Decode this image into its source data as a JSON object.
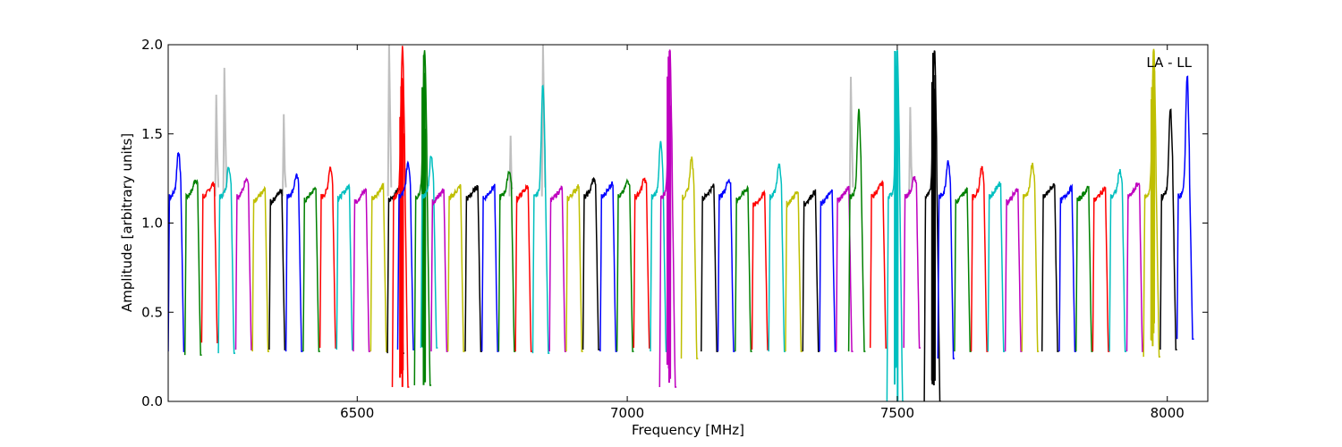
{
  "chart_data": {
    "type": "line",
    "title": "",
    "xlabel": "Frequency [MHz]",
    "ylabel": "Amplitude [arbitrary units]",
    "annotation": "LA - LL",
    "xlim": [
      6150,
      8075
    ],
    "ylim": [
      0.0,
      2.0
    ],
    "xticks": [
      6500,
      7000,
      7500,
      8000
    ],
    "xtick_labels": [
      "6500",
      "7000",
      "7500",
      "8000"
    ],
    "yticks": [
      0.0,
      0.5,
      1.0,
      1.5,
      2.0
    ],
    "ytick_labels": [
      "0.0",
      "0.5",
      "1.0",
      "1.5",
      "2.0"
    ],
    "grid": false,
    "background_series": {
      "name": "",
      "color": "#bfbfbf",
      "description": "grey trace underlying the colored channel traces, following the same comb shape with spikes",
      "spikes": [
        {
          "x": 6240,
          "y": 1.72
        },
        {
          "x": 6255,
          "y": 1.87
        },
        {
          "x": 6365,
          "y": 1.61
        },
        {
          "x": 6560,
          "y": 2.0
        },
        {
          "x": 6785,
          "y": 1.49
        },
        {
          "x": 6845,
          "y": 2.0
        },
        {
          "x": 7415,
          "y": 1.82
        },
        {
          "x": 7525,
          "y": 1.65
        }
      ]
    },
    "channel_period_mhz": 31.25,
    "first_channel_start": 6150,
    "color_cycle": [
      "#0000ff",
      "#008000",
      "#ff0000",
      "#00bfbf",
      "#bf00bf",
      "#bfbf00",
      "#000000"
    ],
    "series": [
      {
        "color": "#0000ff",
        "start": 6150,
        "peak": 1.42,
        "edge_low": 0.28
      },
      {
        "color": "#008000",
        "start": 6181,
        "peak": 1.26,
        "edge_low": 0.26
      },
      {
        "color": "#ff0000",
        "start": 6212,
        "peak": 1.23,
        "edge_low": 0.33
      },
      {
        "color": "#00bfbf",
        "start": 6243,
        "peak": 1.33,
        "edge_low": 0.27
      },
      {
        "color": "#bf00bf",
        "start": 6275,
        "peak": 1.27,
        "edge_low": 0.29
      },
      {
        "color": "#bfbf00",
        "start": 6306,
        "peak": 1.19,
        "edge_low": 0.28
      },
      {
        "color": "#000000",
        "start": 6337,
        "peak": 1.19,
        "edge_low": 0.29
      },
      {
        "color": "#0000ff",
        "start": 6368,
        "peak": 1.28,
        "edge_low": 0.28
      },
      {
        "color": "#008000",
        "start": 6400,
        "peak": 1.2,
        "edge_low": 0.28
      },
      {
        "color": "#ff0000",
        "start": 6431,
        "peak": 1.33,
        "edge_low": 0.3
      },
      {
        "color": "#00bfbf",
        "start": 6462,
        "peak": 1.21,
        "edge_low": 0.29
      },
      {
        "color": "#bf00bf",
        "start": 6493,
        "peak": 1.19,
        "edge_low": 0.28
      },
      {
        "color": "#bfbf00",
        "start": 6525,
        "peak": 1.21,
        "edge_low": 0.28
      },
      {
        "color": "#000000",
        "start": 6556,
        "peak": 1.2,
        "edge_low": 0.27
      },
      {
        "color": "#ff0000",
        "start": 6565,
        "peak": 2.0,
        "edge_low": 0.08
      },
      {
        "color": "#0000ff",
        "start": 6575,
        "peak": 1.36,
        "edge_low": 0.29
      },
      {
        "color": "#008000",
        "start": 6606,
        "peak": 2.0,
        "edge_low": 0.09
      },
      {
        "color": "#00bfbf",
        "start": 6618,
        "peak": 1.4,
        "edge_low": 0.3
      },
      {
        "color": "#bf00bf",
        "start": 6637,
        "peak": 1.19,
        "edge_low": 0.28
      },
      {
        "color": "#bfbf00",
        "start": 6668,
        "peak": 1.21,
        "edge_low": 0.28
      },
      {
        "color": "#000000",
        "start": 6700,
        "peak": 1.21,
        "edge_low": 0.28
      },
      {
        "color": "#0000ff",
        "start": 6731,
        "peak": 1.21,
        "edge_low": 0.28
      },
      {
        "color": "#008000",
        "start": 6762,
        "peak": 1.31,
        "edge_low": 0.28
      },
      {
        "color": "#ff0000",
        "start": 6793,
        "peak": 1.21,
        "edge_low": 0.28
      },
      {
        "color": "#00bfbf",
        "start": 6825,
        "peak": 1.8,
        "edge_low": 0.27
      },
      {
        "color": "#bf00bf",
        "start": 6856,
        "peak": 1.2,
        "edge_low": 0.28
      },
      {
        "color": "#bfbf00",
        "start": 6887,
        "peak": 1.21,
        "edge_low": 0.28
      },
      {
        "color": "#000000",
        "start": 6918,
        "peak": 1.26,
        "edge_low": 0.29
      },
      {
        "color": "#0000ff",
        "start": 6950,
        "peak": 1.23,
        "edge_low": 0.28
      },
      {
        "color": "#008000",
        "start": 6981,
        "peak": 1.25,
        "edge_low": 0.28
      },
      {
        "color": "#ff0000",
        "start": 7012,
        "peak": 1.26,
        "edge_low": 0.3
      },
      {
        "color": "#00bfbf",
        "start": 7043,
        "peak": 1.47,
        "edge_low": 0.28
      },
      {
        "color": "#bf00bf",
        "start": 7060,
        "peak": 2.0,
        "edge_low": 0.08
      },
      {
        "color": "#bfbf00",
        "start": 7100,
        "peak": 1.38,
        "edge_low": 0.24
      },
      {
        "color": "#000000",
        "start": 7137,
        "peak": 1.21,
        "edge_low": 0.28
      },
      {
        "color": "#0000ff",
        "start": 7168,
        "peak": 1.26,
        "edge_low": 0.28
      },
      {
        "color": "#008000",
        "start": 7200,
        "peak": 1.2,
        "edge_low": 0.28
      },
      {
        "color": "#ff0000",
        "start": 7231,
        "peak": 1.17,
        "edge_low": 0.29
      },
      {
        "color": "#00bfbf",
        "start": 7262,
        "peak": 1.35,
        "edge_low": 0.28
      },
      {
        "color": "#bfbf00",
        "start": 7293,
        "peak": 1.18,
        "edge_low": 0.28
      },
      {
        "color": "#000000",
        "start": 7325,
        "peak": 1.18,
        "edge_low": 0.28
      },
      {
        "color": "#0000ff",
        "start": 7356,
        "peak": 1.18,
        "edge_low": 0.28
      },
      {
        "color": "#bf00bf",
        "start": 7387,
        "peak": 1.2,
        "edge_low": 0.28
      },
      {
        "color": "#008000",
        "start": 7410,
        "peak": 1.65,
        "edge_low": 0.28
      },
      {
        "color": "#ff0000",
        "start": 7450,
        "peak": 1.23,
        "edge_low": 0.3
      },
      {
        "color": "#00bfbf",
        "start": 7481,
        "peak": 2.0,
        "edge_low": 0.0
      },
      {
        "color": "#bf00bf",
        "start": 7512,
        "peak": 1.27,
        "edge_low": 0.3
      },
      {
        "color": "#000000",
        "start": 7550,
        "peak": 2.0,
        "edge_low": 0.0
      },
      {
        "color": "#0000ff",
        "start": 7575,
        "peak": 1.37,
        "edge_low": 0.24
      },
      {
        "color": "#008000",
        "start": 7606,
        "peak": 1.19,
        "edge_low": 0.28
      },
      {
        "color": "#ff0000",
        "start": 7637,
        "peak": 1.33,
        "edge_low": 0.28
      },
      {
        "color": "#00bfbf",
        "start": 7668,
        "peak": 1.23,
        "edge_low": 0.28
      },
      {
        "color": "#bf00bf",
        "start": 7700,
        "peak": 1.19,
        "edge_low": 0.28
      },
      {
        "color": "#bfbf00",
        "start": 7731,
        "peak": 1.35,
        "edge_low": 0.28
      },
      {
        "color": "#000000",
        "start": 7768,
        "peak": 1.22,
        "edge_low": 0.28
      },
      {
        "color": "#0000ff",
        "start": 7800,
        "peak": 1.2,
        "edge_low": 0.28
      },
      {
        "color": "#008000",
        "start": 7831,
        "peak": 1.2,
        "edge_low": 0.28
      },
      {
        "color": "#ff0000",
        "start": 7862,
        "peak": 1.2,
        "edge_low": 0.28
      },
      {
        "color": "#00bfbf",
        "start": 7893,
        "peak": 1.31,
        "edge_low": 0.28
      },
      {
        "color": "#bf00bf",
        "start": 7925,
        "peak": 1.23,
        "edge_low": 0.28
      },
      {
        "color": "#bfbf00",
        "start": 7956,
        "peak": 2.0,
        "edge_low": 0.25
      },
      {
        "color": "#000000",
        "start": 7987,
        "peak": 1.66,
        "edge_low": 0.29
      },
      {
        "color": "#0000ff",
        "start": 8018,
        "peak": 1.85,
        "edge_low": 0.35
      }
    ]
  }
}
